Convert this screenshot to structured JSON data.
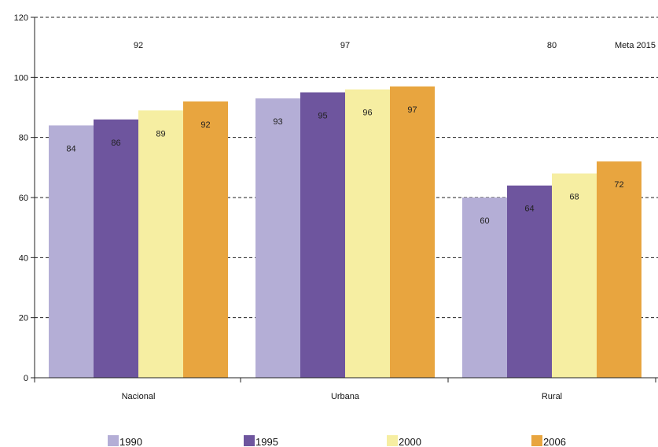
{
  "chart_data": {
    "type": "bar",
    "categories": [
      "Nacional",
      "Urbana",
      "Rural"
    ],
    "series": [
      {
        "name": "1990",
        "values": [
          84,
          93,
          60
        ],
        "color": "#b4aed6"
      },
      {
        "name": "1995",
        "values": [
          86,
          95,
          64
        ],
        "color": "#6e559e"
      },
      {
        "name": "2000",
        "values": [
          89,
          96,
          68
        ],
        "color": "#f6eea2"
      },
      {
        "name": "2006",
        "values": [
          92,
          97,
          72
        ],
        "color": "#e8a53f"
      }
    ],
    "targets": [
      92,
      97,
      80
    ],
    "target_label": "Meta 2015",
    "ylim": [
      0,
      120
    ],
    "yticks": [
      0,
      20,
      40,
      60,
      80,
      100,
      120
    ],
    "grid": "dashed horizontal",
    "legend_position": "bottom"
  }
}
